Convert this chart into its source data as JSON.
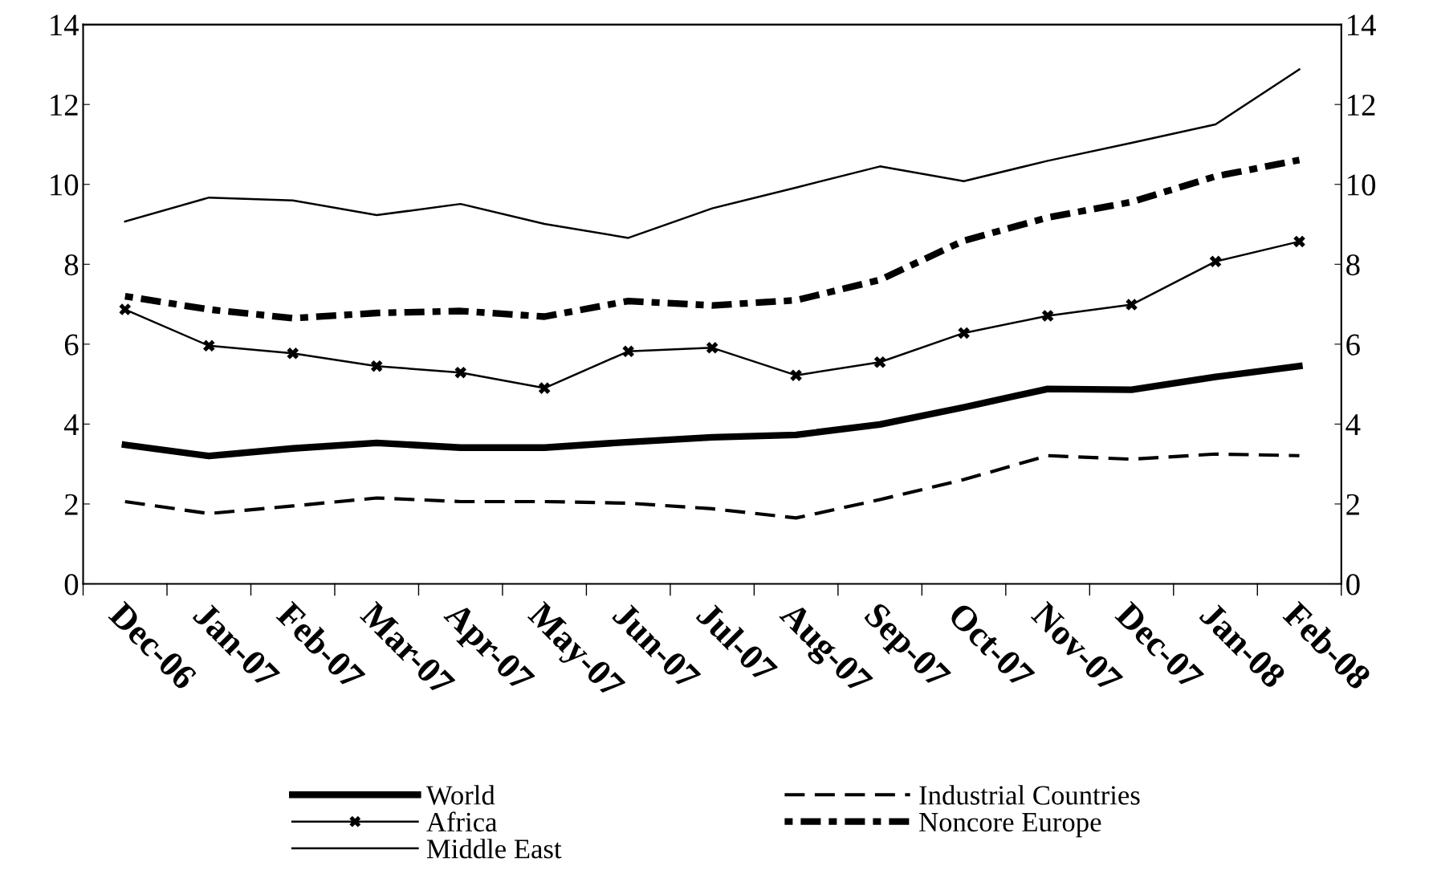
{
  "chart_data": {
    "type": "line",
    "categories": [
      "Dec-06",
      "Jan-07",
      "Feb-07",
      "Mar-07",
      "Apr-07",
      "May-07",
      "Jun-07",
      "Jul-07",
      "Aug-07",
      "Sep-07",
      "Oct-07",
      "Nov-07",
      "Dec-07",
      "Jan-08",
      "Feb-08"
    ],
    "series": [
      {
        "name": "World",
        "color": "#000000",
        "line_style": "solid",
        "marker": "none",
        "values": [
          3.48,
          3.2,
          3.39,
          3.53,
          3.41,
          3.41,
          3.55,
          3.67,
          3.73,
          3.99,
          4.42,
          4.88,
          4.86,
          5.18,
          5.45
        ]
      },
      {
        "name": "Africa",
        "color": "#000000",
        "line_style": "solid",
        "marker": "cross",
        "values": [
          6.87,
          5.96,
          5.77,
          5.45,
          5.29,
          4.9,
          5.82,
          5.91,
          5.22,
          5.55,
          6.28,
          6.71,
          6.99,
          8.07,
          8.57
        ]
      },
      {
        "name": "Middle East",
        "color": "#000000",
        "line_style": "solid",
        "marker": "none",
        "values": [
          9.07,
          9.67,
          9.6,
          9.23,
          9.51,
          9.01,
          8.66,
          9.4,
          9.92,
          10.45,
          10.08,
          10.59,
          11.04,
          11.5,
          12.88
        ]
      },
      {
        "name": "Industrial Countries",
        "color": "#000000",
        "line_style": "dashed",
        "marker": "none",
        "values": [
          2.06,
          1.76,
          1.95,
          2.15,
          2.06,
          2.06,
          2.02,
          1.88,
          1.65,
          2.11,
          2.61,
          3.21,
          3.12,
          3.25,
          3.21
        ]
      },
      {
        "name": "Noncore Europe",
        "color": "#000000",
        "line_style": "dotted",
        "marker": "none",
        "values": [
          7.2,
          6.87,
          6.65,
          6.78,
          6.83,
          6.69,
          7.08,
          6.97,
          7.1,
          7.61,
          8.59,
          9.17,
          9.56,
          10.2,
          10.61
        ]
      }
    ],
    "ylim": [
      0,
      14
    ],
    "yticks": [
      0,
      2,
      4,
      6,
      8,
      10,
      12,
      14
    ],
    "y2lim": [
      0,
      14
    ],
    "y2ticks": [
      0,
      2,
      4,
      6,
      8,
      10,
      12,
      14
    ],
    "grid": false,
    "legend": "bottom"
  }
}
